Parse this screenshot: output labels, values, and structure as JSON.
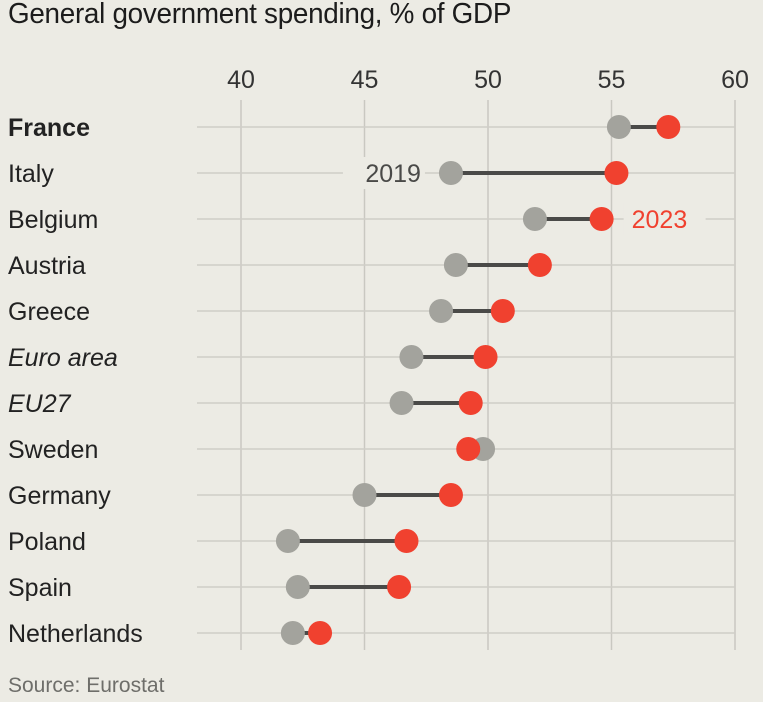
{
  "chart_data": {
    "type": "dumbbell",
    "title": "General government spending, % of GDP",
    "source": "Source: Eurostat",
    "xlim": [
      40,
      60
    ],
    "xticks": [
      40,
      45,
      50,
      55,
      60
    ],
    "grid": true,
    "series": [
      {
        "name": "2019",
        "color": "#a3a39d",
        "label_at": "Italy"
      },
      {
        "name": "2023",
        "color": "#f0412f",
        "label_at": "Belgium"
      }
    ],
    "connector_color": "#4a4a48",
    "categories": [
      {
        "name": "France",
        "style": "bold",
        "v2019": 55.3,
        "v2023": 57.3
      },
      {
        "name": "Italy",
        "style": "normal",
        "v2019": 48.5,
        "v2023": 55.2
      },
      {
        "name": "Belgium",
        "style": "normal",
        "v2019": 51.9,
        "v2023": 54.6
      },
      {
        "name": "Austria",
        "style": "normal",
        "v2019": 48.7,
        "v2023": 52.1
      },
      {
        "name": "Greece",
        "style": "normal",
        "v2019": 48.1,
        "v2023": 50.6
      },
      {
        "name": "Euro area",
        "style": "italic",
        "v2019": 46.9,
        "v2023": 49.9
      },
      {
        "name": "EU27",
        "style": "italic",
        "v2019": 46.5,
        "v2023": 49.3
      },
      {
        "name": "Sweden",
        "style": "normal",
        "v2019": 49.8,
        "v2023": 49.2
      },
      {
        "name": "Germany",
        "style": "normal",
        "v2019": 45.0,
        "v2023": 48.5
      },
      {
        "name": "Poland",
        "style": "normal",
        "v2019": 41.9,
        "v2023": 46.7
      },
      {
        "name": "Spain",
        "style": "normal",
        "v2019": 42.3,
        "v2023": 46.4
      },
      {
        "name": "Netherlands",
        "style": "normal",
        "v2019": 42.1,
        "v2023": 43.2
      }
    ]
  }
}
